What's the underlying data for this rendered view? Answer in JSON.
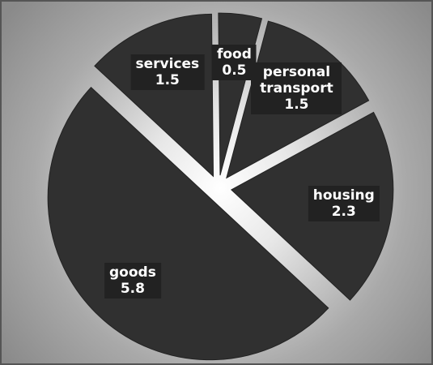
{
  "chart_data": {
    "type": "pie",
    "categories": [
      "food",
      "personal transport",
      "housing",
      "goods",
      "services"
    ],
    "values": [
      0.5,
      1.5,
      2.3,
      5.8,
      1.5
    ],
    "color": "#303030"
  }
}
